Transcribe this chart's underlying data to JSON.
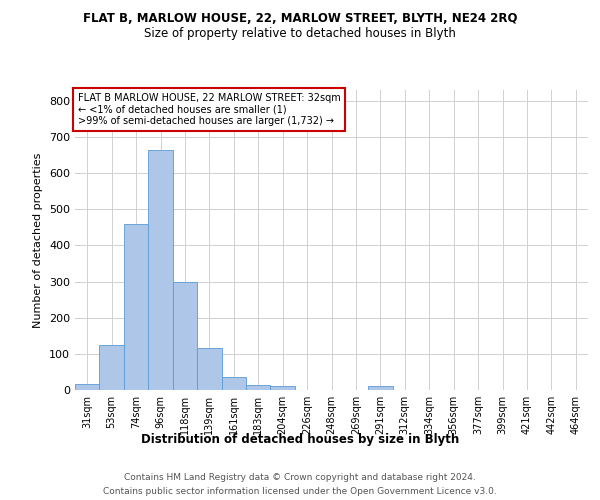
{
  "title1": "FLAT B, MARLOW HOUSE, 22, MARLOW STREET, BLYTH, NE24 2RQ",
  "title2": "Size of property relative to detached houses in Blyth",
  "xlabel": "Distribution of detached houses by size in Blyth",
  "ylabel": "Number of detached properties",
  "footnote1": "Contains HM Land Registry data © Crown copyright and database right 2024.",
  "footnote2": "Contains public sector information licensed under the Open Government Licence v3.0.",
  "bar_color": "#aec6e8",
  "bar_edge_color": "#5b9bd5",
  "annotation_box_color": "#ffffff",
  "annotation_box_edge_color": "#cc0000",
  "annotation_line1": "FLAT B MARLOW HOUSE, 22 MARLOW STREET: 32sqm",
  "annotation_line2": "← <1% of detached houses are smaller (1)",
  "annotation_line3": ">99% of semi-detached houses are larger (1,732) →",
  "categories": [
    "31sqm",
    "53sqm",
    "74sqm",
    "96sqm",
    "118sqm",
    "139sqm",
    "161sqm",
    "183sqm",
    "204sqm",
    "226sqm",
    "248sqm",
    "269sqm",
    "291sqm",
    "312sqm",
    "334sqm",
    "356sqm",
    "377sqm",
    "399sqm",
    "421sqm",
    "442sqm",
    "464sqm"
  ],
  "values": [
    17,
    125,
    460,
    665,
    300,
    115,
    35,
    13,
    10,
    0,
    0,
    0,
    10,
    0,
    0,
    0,
    0,
    0,
    0,
    0,
    0
  ],
  "ylim": [
    0,
    830
  ],
  "yticks": [
    0,
    100,
    200,
    300,
    400,
    500,
    600,
    700,
    800
  ],
  "bg_color": "#ffffff",
  "grid_color": "#d0d0d0",
  "title1_fontsize": 8.5,
  "title2_fontsize": 8.5,
  "xlabel_fontsize": 8.5,
  "ylabel_fontsize": 8,
  "tick_fontsize": 7,
  "annotation_fontsize": 7,
  "footnote_fontsize": 6.5,
  "footnote_color": "#555555"
}
